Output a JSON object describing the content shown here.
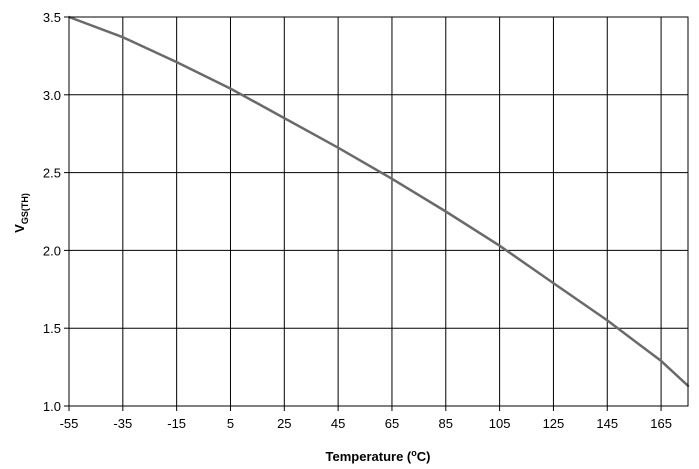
{
  "chart_data": {
    "type": "line",
    "title": "",
    "xlabel": "Temperature (",
    "xlabel_super": "o",
    "xlabel_suffix": "C)",
    "ylabel": "V",
    "ylabel_sub": "GS(TH)",
    "xlim": [
      -55,
      175
    ],
    "ylim": [
      1.0,
      3.5
    ],
    "x_ticks": [
      -55,
      -35,
      -15,
      5,
      25,
      45,
      65,
      85,
      105,
      125,
      145,
      165
    ],
    "x_tick_labels": [
      "-55",
      "-35",
      "-15",
      "5",
      "25",
      "45",
      "65",
      "85",
      "105",
      "125",
      "145",
      "165"
    ],
    "y_ticks": [
      1.0,
      1.5,
      2.0,
      2.5,
      3.0,
      3.5
    ],
    "y_tick_labels": [
      "1.0",
      "1.5",
      "2.0",
      "2.5",
      "3.0",
      "3.5"
    ],
    "grid": true,
    "legend": "none",
    "series": [
      {
        "color": "#6a6a6a",
        "x": [
          -55,
          -35,
          -15,
          5,
          25,
          45,
          65,
          85,
          105,
          125,
          145,
          165,
          175
        ],
        "y": [
          3.5,
          3.37,
          3.21,
          3.04,
          2.85,
          2.66,
          2.46,
          2.25,
          2.03,
          1.79,
          1.55,
          1.29,
          1.13
        ]
      }
    ]
  }
}
